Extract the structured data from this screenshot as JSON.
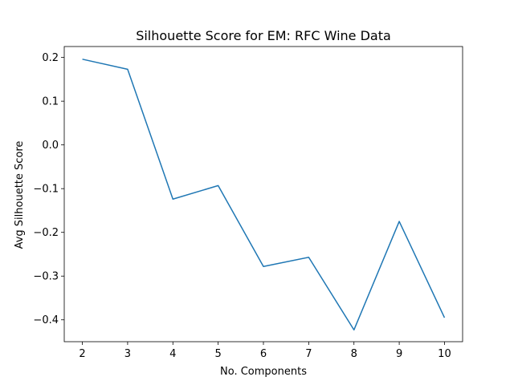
{
  "chart_data": {
    "type": "line",
    "title": "Silhouette Score for EM: RFC Wine Data",
    "xlabel": "No. Components",
    "ylabel": "Avg Silhouette Score",
    "xlim": [
      1.6,
      10.4
    ],
    "ylim": [
      -0.45,
      0.225
    ],
    "xticks": [
      2,
      3,
      4,
      5,
      6,
      7,
      8,
      9,
      10
    ],
    "yticks": [
      0.2,
      0.1,
      0.0,
      -0.1,
      -0.2,
      -0.3,
      -0.4
    ],
    "ytick_labels": [
      "0.2",
      "0.1",
      "0.0",
      "−0.1",
      "−0.2",
      "−0.3",
      "−0.4"
    ],
    "grid": false,
    "series": [
      {
        "color": "#1f77b4",
        "x": [
          2,
          3,
          4,
          5,
          6,
          7,
          8,
          9,
          10
        ],
        "values": [
          0.196,
          0.173,
          -0.124,
          -0.093,
          -0.278,
          -0.257,
          -0.423,
          -0.175,
          -0.395
        ]
      }
    ]
  }
}
